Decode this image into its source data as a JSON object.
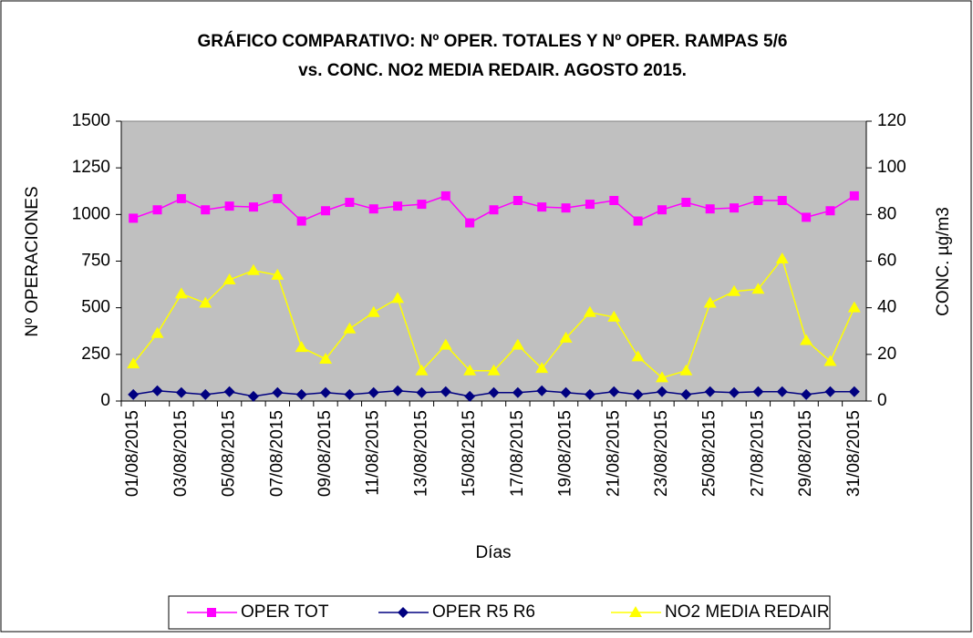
{
  "chart_data": {
    "type": "line",
    "title": [
      "GRÁFICO COMPARATIVO: Nº OPER. TOTALES Y Nº OPER. RAMPAS 5/6",
      "vs. CONC. NO2 MEDIA REDAIR. AGOSTO 2015."
    ],
    "xlabel": "Días",
    "ylabel": "Nº OPERACIONES",
    "y2label": "CONC. µg/m3",
    "categories": [
      "01/08/2015",
      null,
      "03/08/2015",
      null,
      "05/08/2015",
      null,
      "07/08/2015",
      null,
      "09/08/2015",
      null,
      "11/08/2015",
      null,
      "13/08/2015",
      null,
      "15/08/2015",
      null,
      "17/08/2015",
      null,
      "19/08/2015",
      null,
      "21/08/2015",
      null,
      "23/08/2015",
      null,
      "25/08/2015",
      null,
      "27/08/2015",
      null,
      "29/08/2015",
      null,
      "31/08/2015"
    ],
    "ylim": [
      0,
      1500
    ],
    "yticks": [
      0,
      250,
      500,
      750,
      1000,
      1250,
      1500
    ],
    "y2lim": [
      0,
      120
    ],
    "y2ticks": [
      0,
      20,
      40,
      60,
      80,
      100,
      120
    ],
    "legend": "bottom",
    "series": [
      {
        "name": "OPER TOT",
        "color": "#ff00ff",
        "marker": "square",
        "values": [
          980,
          1025,
          1085,
          1025,
          1045,
          1040,
          1085,
          965,
          1020,
          1065,
          1030,
          1045,
          1055,
          1100,
          955,
          1025,
          1075,
          1040,
          1035,
          1055,
          1075,
          965,
          1025,
          1065,
          1030,
          1035,
          1075,
          1075,
          985,
          1020,
          1100
        ]
      },
      {
        "name": "OPER R5 R6",
        "color": "#000080",
        "marker": "diamond",
        "values": [
          35,
          55,
          45,
          35,
          50,
          25,
          45,
          35,
          45,
          35,
          45,
          55,
          45,
          50,
          25,
          45,
          45,
          55,
          45,
          35,
          50,
          35,
          50,
          35,
          50,
          45,
          50,
          50,
          35,
          50,
          50
        ]
      },
      {
        "name": "NO2 MEDIA REDAIR",
        "color": "#ffff00",
        "marker": "triangle",
        "axis": "y2",
        "values": [
          16,
          29,
          46,
          42,
          52,
          56,
          54,
          23,
          18,
          31,
          38,
          44,
          13,
          24,
          13,
          13,
          24,
          14,
          27,
          38,
          36,
          19,
          10,
          13,
          42,
          47,
          48,
          61,
          26,
          17,
          40
        ]
      }
    ]
  }
}
